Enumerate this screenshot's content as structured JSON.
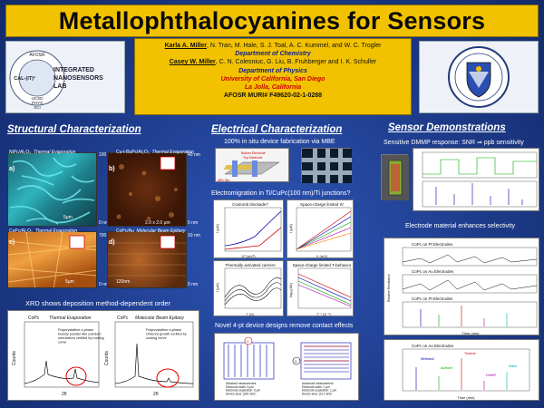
{
  "title": "Metallophthalocyanines for Sensors",
  "logo_left": {
    "top": "AFOSR",
    "calit2": "CAL-(IT)²",
    "name_line1": "INTEGRATED",
    "name_line2": "NANOSENSORS",
    "name_line3": "LAB",
    "sub1": "UCSD",
    "sub2": "PHYS",
    "sub3": "SCI"
  },
  "authors": {
    "chem_lead": "Karla A. Miller",
    "chem_rest": ", N. Tran, M. Hale, S. J. Toal, A. C. Kummel, and W. C. Trogler",
    "chem_dept": "Department of Chemistry",
    "phys_lead": "Casey W. Miller",
    "phys_rest": ", C. N. Colesniuc, G. Liu, B. Fruhberger and I. K. Schuller",
    "phys_dept": "Department of Physics",
    "univ": "University of California, San Diego",
    "city": "La Jolla, California",
    "grant": "AFOSR MURI# F49620-02-1-0288"
  },
  "structural": {
    "heading": "Structural Characterization",
    "panels": [
      {
        "letter": "a)",
        "label": "NiPc/Al₂O₃",
        "method": "Thermal Evaporation",
        "scale_top": "100 nm",
        "scale_bot": "0 nm",
        "size": "5μm"
      },
      {
        "letter": "b)",
        "label": "Cu-t-BuPc/Al₂O₃",
        "method": "Thermal Evaporation",
        "scale_top": "40 nm",
        "scale_bot": "0 nm",
        "size": "2.0 x 2.0 μm"
      },
      {
        "letter": "c)",
        "label": "CoPc/Al₂O₃",
        "method": "Thermal Evaporation",
        "scale_top": "700 nm",
        "scale_bot": "0 nm",
        "size": "5μm"
      },
      {
        "letter": "d)",
        "label": "CoPc/Au",
        "method": "Molecular Beam Epitaxy",
        "scale_top": "10 nm",
        "scale_bot": "0 nm",
        "size": "120nm"
      }
    ],
    "xrd_heading": "XRD shows deposition method-dependent order",
    "xrd_left": {
      "title": "CoPc",
      "method": "Thermal Evaporation",
      "note": "Polycrystalline α-phase heavily powder-like (random orientation) verified by rocking curve",
      "xlabel": "2θ",
      "ylabel": "Counts"
    },
    "xrd_right": {
      "title": "CoPc",
      "method": "Molecular Beam Epitaxy",
      "note": "Polycrystalline α-phase Ordered growth verified by rocking curve",
      "xlabel": "2θ",
      "ylabel": "Counts"
    }
  },
  "electrical": {
    "heading": "Electrical Characterization",
    "sub": "100% in situ device fabrication via MBE",
    "device_labels": {
      "bottom": "Bottom Electrode",
      "top": "Top Electrode",
      "mpc": "MPc film"
    },
    "em_heading": "Electromigration in Ti/CuPc(100 nm)/Ti junctions?",
    "plots": [
      {
        "title": "Coulomb blockade?",
        "xlabel": "V² (mV²)",
        "ylabel": "I (μA)"
      },
      {
        "title": "Space-charge limited IV",
        "xlabel": "V (mV)",
        "ylabel": "I (μA)"
      },
      {
        "title": "Thermally activated carriers",
        "xlabel": "T (K)",
        "ylabel": "I (μA)"
      },
      {
        "title": "Space-charge limited T-behavior",
        "xlabel": "T⁻¹ (K⁻¹)",
        "ylabel": "log₁₀(I/A)"
      }
    ],
    "fourpt_heading": "Novel 4-pt device designs remove contact effects",
    "fourpt_left": "Standard measurement Electrode width: 6 μm Electrode separation: 6 μm Device area: (3x6 mm)²",
    "fourpt_right": "Advanced measurement Electrode width: 1 μm Electrode separation: 1 μm Device area: (1x1 mm)²"
  },
  "sensor": {
    "heading": "Sensor Demonstrations",
    "sub": "Sensitive DMMP response: SNR ⇒ ppb sensitivity",
    "selectivity": "Electrode material enhances selectivity",
    "plots": [
      {
        "title": "CoPc on Pt Electrodes"
      },
      {
        "title": "CoPc on Au Electrodes"
      },
      {
        "title": "CoPc on Pt Electrodes"
      },
      {
        "title": "CoPc on Au Electrodes"
      }
    ],
    "xlabel": "Time (min)",
    "ylabel": "Relative Resistance",
    "legend": [
      "Methanol",
      "Acetone",
      "Toluene",
      "DMMP",
      "Water"
    ]
  },
  "colors": {
    "background": "#1d3b8a",
    "title_bar": "#f2c200",
    "dept": "#0a1f8f",
    "univ": "#cc0000"
  }
}
